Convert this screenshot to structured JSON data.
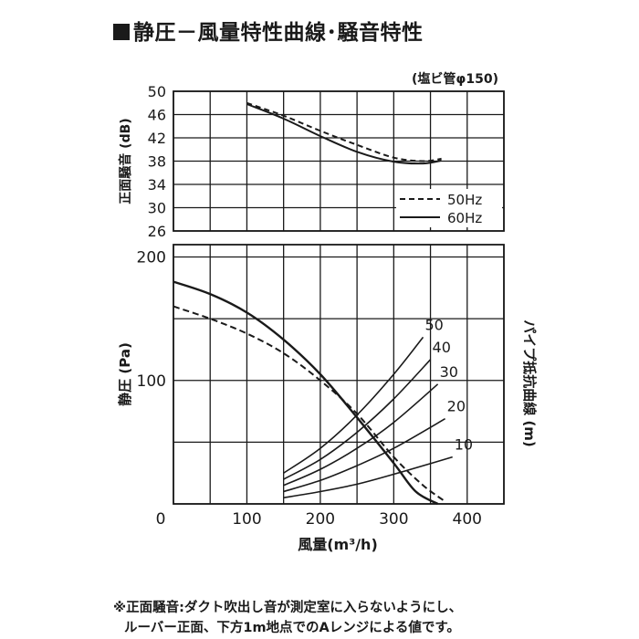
{
  "title": "静圧－風量特性曲線･騒音特性",
  "notes": [
    "※正面騒音:ダクト吹出し音が測定室に入らないようにし、",
    "ルーバー正面、下方1m地点でのAレンジによる値です。"
  ],
  "colors": {
    "ink": "#1a1a1a",
    "grid": "#1a1a1a",
    "background": "#ffffff"
  },
  "chart_data": [
    {
      "id": "noise",
      "type": "line",
      "annotation": "(塩ビ管φ150)",
      "ylabel": "正面騒音 (dB)",
      "xlabel": "",
      "xlim": [
        0,
        450
      ],
      "ylim": [
        26,
        50
      ],
      "xticks": [
        0,
        50,
        100,
        150,
        200,
        250,
        300,
        350,
        400,
        450
      ],
      "yticks": [
        26,
        30,
        34,
        38,
        42,
        46,
        50
      ],
      "yticklabels": [
        "26",
        "30",
        "34",
        "38",
        "42",
        "46",
        "50"
      ],
      "grid": true,
      "legend": "bottom-right",
      "series": [
        {
          "name": "50Hz",
          "style": "dashed",
          "x": [
            100,
            150,
            200,
            250,
            300,
            340,
            365
          ],
          "y": [
            48,
            45.8,
            43.2,
            40.8,
            38.6,
            38.0,
            38.4
          ]
        },
        {
          "name": "60Hz",
          "style": "solid",
          "x": [
            100,
            150,
            200,
            250,
            300,
            340,
            365
          ],
          "y": [
            47.8,
            45.3,
            42.3,
            39.6,
            37.9,
            37.6,
            38.1
          ]
        }
      ]
    },
    {
      "id": "pressure",
      "type": "line",
      "ylabel": "静圧 (Pa)",
      "xlabel": "風量(m³/h)",
      "y2label": "パイプ抵抗曲線 (m)",
      "xlim": [
        0,
        450
      ],
      "ylim": [
        0,
        210
      ],
      "xticks": [
        0,
        50,
        100,
        150,
        200,
        250,
        300,
        350,
        400,
        450
      ],
      "xticklabels": [
        "0",
        "",
        "100",
        "",
        "200",
        "",
        "300",
        "",
        "400",
        ""
      ],
      "yticks": [
        0,
        50,
        100,
        150,
        200
      ],
      "yticklabels": [
        "",
        "",
        "100",
        "",
        "200"
      ],
      "grid": true,
      "series": [
        {
          "name": "60Hz",
          "style": "solid",
          "x": [
            0,
            50,
            100,
            150,
            200,
            250,
            300,
            330,
            360
          ],
          "y": [
            180,
            170,
            155,
            133,
            105,
            70,
            33,
            10,
            0
          ]
        },
        {
          "name": "50Hz",
          "style": "dashed",
          "x": [
            0,
            50,
            100,
            150,
            200,
            250,
            300,
            340,
            370
          ],
          "y": [
            160,
            150,
            138,
            122,
            100,
            73,
            38,
            15,
            2
          ]
        }
      ],
      "pipe_curves": [
        {
          "label": "50",
          "x": [
            150,
            200,
            250,
            300,
            340
          ],
          "y": [
            25,
            45,
            72,
            105,
            135
          ]
        },
        {
          "label": "40",
          "x": [
            150,
            200,
            250,
            300,
            350
          ],
          "y": [
            20,
            36,
            58,
            85,
            117
          ]
        },
        {
          "label": "30",
          "x": [
            150,
            200,
            250,
            300,
            360
          ],
          "y": [
            15,
            28,
            45,
            66,
            97
          ]
        },
        {
          "label": "20",
          "x": [
            150,
            200,
            250,
            300,
            370
          ],
          "y": [
            10,
            19,
            31,
            45,
            69
          ]
        },
        {
          "label": "10",
          "x": [
            150,
            200,
            250,
            300,
            380
          ],
          "y": [
            5,
            10,
            16,
            24,
            38
          ]
        }
      ]
    }
  ]
}
